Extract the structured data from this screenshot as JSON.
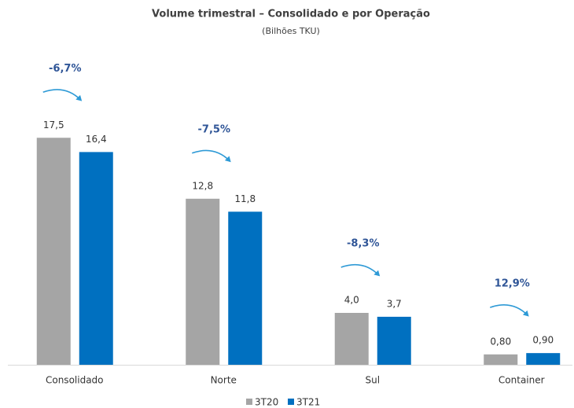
{
  "chart_data": {
    "type": "bar",
    "title": "Volume trimestral – Consolidado e por Operação",
    "subtitle": "(Bilhões TKU)",
    "categories": [
      "Consolidado",
      "Norte",
      "Sul",
      "Container"
    ],
    "series": [
      {
        "name": "3T20",
        "color": "#a5a5a5",
        "values": [
          17.5,
          12.8,
          4.0,
          0.8
        ],
        "value_labels": [
          "17,5",
          "12,8",
          "4,0",
          "0,80"
        ]
      },
      {
        "name": "3T21",
        "color": "#0070c0",
        "values": [
          16.4,
          11.8,
          3.7,
          0.9
        ],
        "value_labels": [
          "16,4",
          "11,8",
          "3,7",
          "0,90"
        ]
      }
    ],
    "annotations": [
      "-6,7%",
      "-7,5%",
      "-8,3%",
      "12,9%"
    ],
    "ylim": [
      0,
      20
    ],
    "legend": "bottom"
  }
}
